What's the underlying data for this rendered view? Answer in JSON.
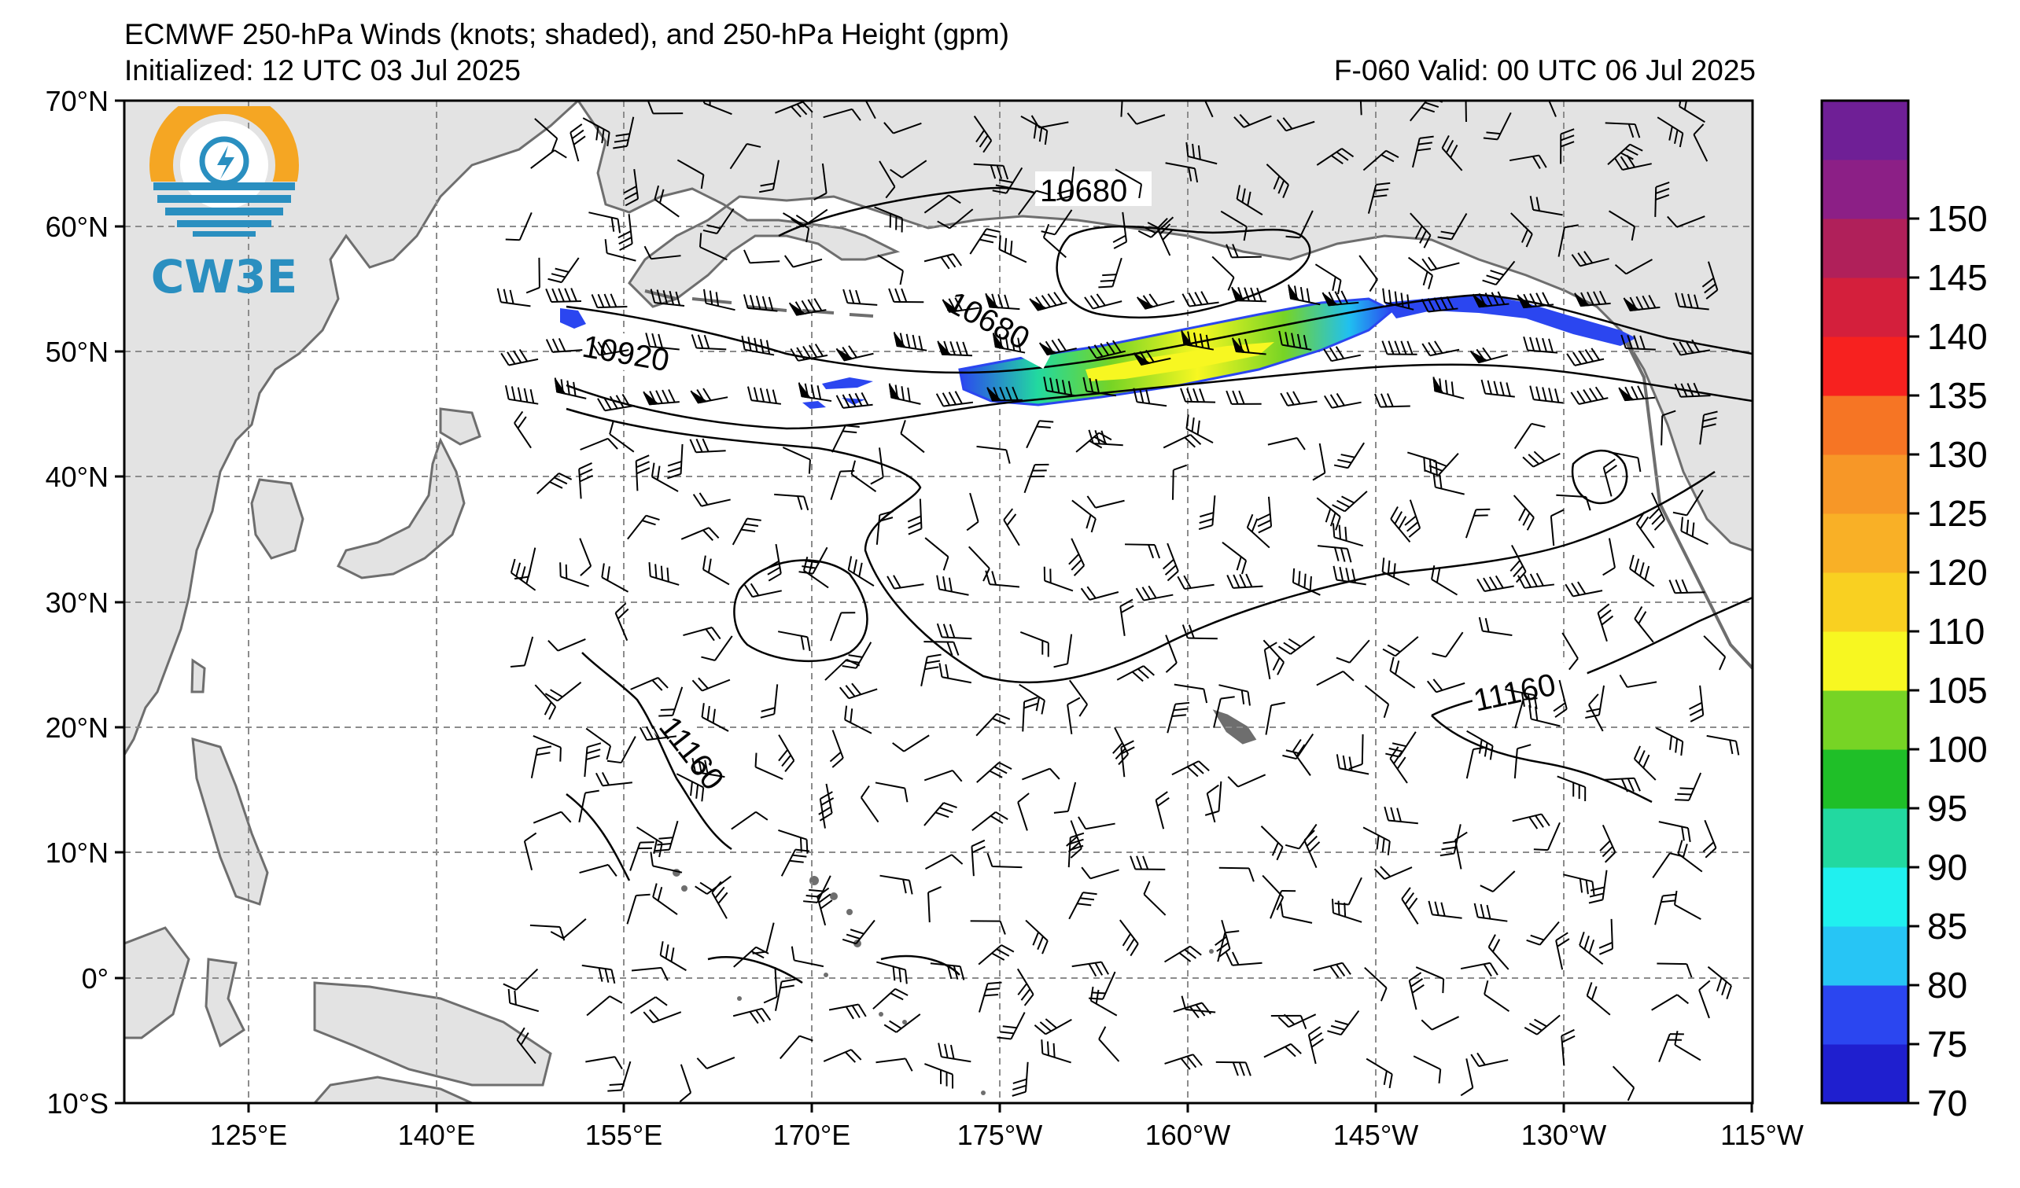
{
  "header": {
    "title": "ECMWF 250-hPa Winds (knots; shaded), and 250-hPa Height (gpm)",
    "initialized": "Initialized: 12 UTC 03 Jul 2025",
    "valid": "F-060  Valid: 00 UTC 06 Jul 2025"
  },
  "logo": {
    "text": "CW3E",
    "colors": {
      "ring": "#f5a623",
      "wave": "#2a8fc0"
    }
  },
  "map": {
    "lat_labels": [
      "70°N",
      "60°N",
      "50°N",
      "40°N",
      "30°N",
      "20°N",
      "10°N",
      "0°",
      "10°S"
    ],
    "lon_labels": [
      "125°E",
      "140°E",
      "155°E",
      "170°E",
      "175°W",
      "160°W",
      "145°W",
      "130°W",
      "115°W"
    ],
    "contour_labels": [
      "10680",
      "10680",
      "10920",
      "11160",
      "11160"
    ],
    "colors": {
      "land": "#e3e3e3",
      "coast": "#6e6e6e",
      "grid": "#8c8c8c",
      "contour": "#000000",
      "barb": "#000000"
    }
  },
  "colorbar": {
    "labels": [
      "70",
      "75",
      "80",
      "85",
      "90",
      "95",
      "100",
      "105",
      "110",
      "120",
      "125",
      "130",
      "135",
      "140",
      "145",
      "150"
    ],
    "colors": [
      "#1f1fcf",
      "#2b46f0",
      "#27c5f5",
      "#20f0ef",
      "#22d9a0",
      "#1fbf28",
      "#77d425",
      "#f7f721",
      "#f9d021",
      "#f9b026",
      "#f79727",
      "#f67524",
      "#f7211f",
      "#d41f3c",
      "#b0205a",
      "#8c1f86",
      "#6f1f96"
    ]
  }
}
